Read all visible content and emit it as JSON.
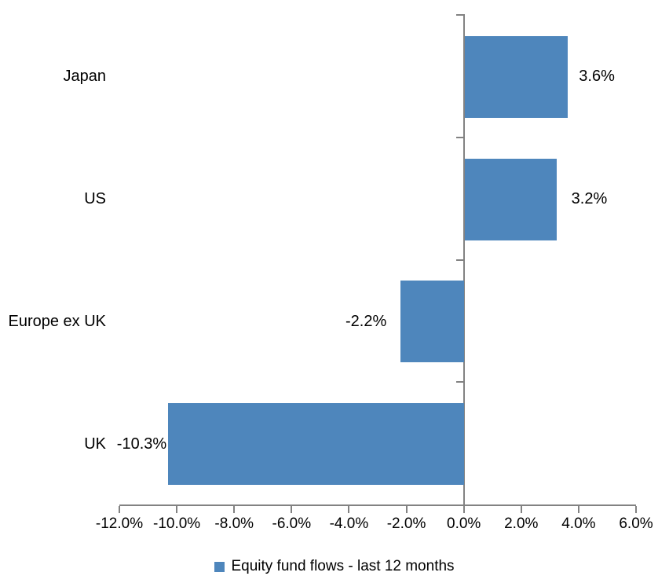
{
  "chart_data": {
    "type": "bar",
    "orientation": "horizontal",
    "title": "",
    "categories": [
      "Japan",
      "US",
      "Europe ex UK",
      "UK"
    ],
    "series": [
      {
        "name": "Equity fund flows - last 12 months",
        "values": [
          3.6,
          3.2,
          -2.2,
          -10.3
        ],
        "data_labels": [
          "3.6%",
          "3.2%",
          "-2.2%",
          "-10.3%"
        ]
      }
    ],
    "xlim": [
      -12,
      6
    ],
    "x_tick_step": 2,
    "x_tick_labels": [
      "-12.0%",
      "-10.0%",
      "-8.0%",
      "-6.0%",
      "-4.0%",
      "-2.0%",
      "0.0%",
      "2.0%",
      "4.0%",
      "6.0%"
    ],
    "grid": false,
    "legend": {
      "position": "bottom",
      "label": "Equity fund flows - last 12 months"
    },
    "colors": {
      "bar": "#4E86BC",
      "axis": "#828282",
      "text": "#000000",
      "background": "#FFFFFF"
    }
  }
}
